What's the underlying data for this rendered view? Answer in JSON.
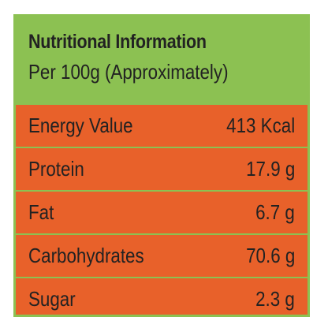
{
  "header": {
    "title": "Nutritional Information",
    "subtitle": "Per 100g (Approximately)"
  },
  "rows": [
    {
      "label": "Energy Value",
      "value": "413 Kcal"
    },
    {
      "label": "Protein",
      "value": "17.9 g"
    },
    {
      "label": "Fat",
      "value": "6.7 g"
    },
    {
      "label": "Carbohydrates",
      "value": "70.6 g"
    },
    {
      "label": "Sugar",
      "value": "2.3 g"
    }
  ],
  "colors": {
    "header_background": "#8cc152",
    "table_background": "#e8612a",
    "text": "#222222"
  }
}
